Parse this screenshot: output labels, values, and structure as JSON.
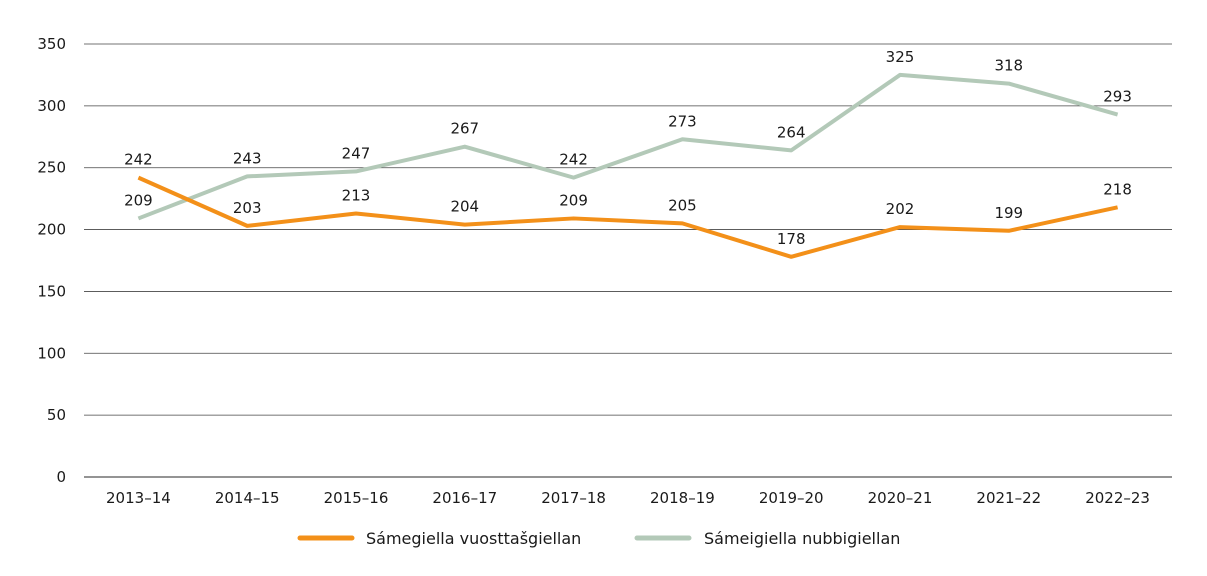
{
  "chart_data": {
    "type": "line",
    "categories": [
      "2013–14",
      "2014–15",
      "2015–16",
      "2016–17",
      "2017–18",
      "2018–19",
      "2019–20",
      "2020–21",
      "2021–22",
      "2022–23"
    ],
    "ylim": [
      0,
      350
    ],
    "yticks": [
      0,
      50,
      100,
      150,
      200,
      250,
      300,
      350
    ],
    "grid": true,
    "legend_position": "bottom",
    "series": [
      {
        "name": "Sámegiella vuosttašgiellan",
        "color": "#f39019",
        "values": [
          242,
          203,
          213,
          204,
          209,
          205,
          178,
          202,
          199,
          218
        ]
      },
      {
        "name": "Sámeigiella nubbigiellan",
        "color": "#b3c9b8",
        "values": [
          209,
          243,
          247,
          267,
          242,
          273,
          264,
          325,
          318,
          293
        ]
      }
    ]
  }
}
